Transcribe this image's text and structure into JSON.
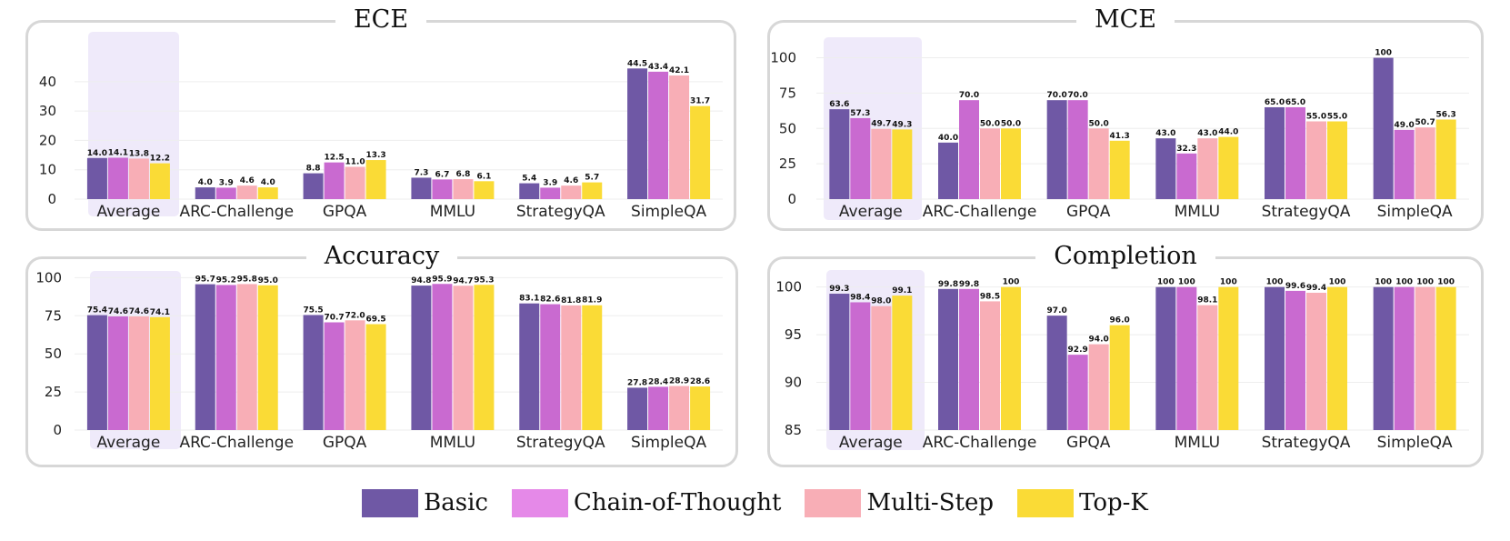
{
  "colors": {
    "highlight": "#efeafa",
    "grid": "#eeeeee"
  },
  "legend": [
    {
      "name": "Basic",
      "color": "#6f58a5"
    },
    {
      "name": "Chain-of-Thought",
      "color": "#e589e8"
    },
    {
      "name": "Multi-Step",
      "color": "#f8aeb6"
    },
    {
      "name": "Top-K",
      "color": "#fadb36"
    }
  ],
  "chart_data": [
    {
      "type": "bar",
      "title": "ECE",
      "categories": [
        "Average",
        "ARC-Challenge",
        "GPQA",
        "MMLU",
        "StrategyQA",
        "SimpleQA"
      ],
      "ylim": [
        0,
        48
      ],
      "yticks": [
        0,
        10,
        20,
        30,
        40
      ],
      "highlight_category": "Average",
      "series": [
        {
          "name": "Basic",
          "color": "#6f58a5",
          "values": [
            14.0,
            4.0,
            8.8,
            7.3,
            5.4,
            44.5
          ]
        },
        {
          "name": "Chain-of-Thought",
          "color": "#c96ad0",
          "values": [
            14.1,
            3.9,
            12.5,
            6.7,
            3.9,
            43.4
          ]
        },
        {
          "name": "Multi-Step",
          "color": "#f8aeb6",
          "values": [
            13.8,
            4.6,
            11.0,
            6.8,
            4.6,
            42.1
          ]
        },
        {
          "name": "Top-K",
          "color": "#fadb36",
          "values": [
            12.2,
            4.0,
            13.3,
            6.1,
            5.7,
            31.7
          ]
        }
      ],
      "data_labels": [
        [
          "14.0",
          "4.0",
          "8.8",
          "7.3",
          "5.4",
          "44.5"
        ],
        [
          "14.1",
          "3.9",
          "12.5",
          "6.7",
          "3.9",
          "43.4"
        ],
        [
          "13.8",
          "4.6",
          "11.0",
          "6.8",
          "4.6",
          "42.1"
        ],
        [
          "12.2",
          "4.0",
          "13.3",
          "6.1",
          "5.7",
          "31.7"
        ]
      ]
    },
    {
      "type": "bar",
      "title": "MCE",
      "categories": [
        "Average",
        "ARC-Challenge",
        "GPQA",
        "MMLU",
        "StrategyQA",
        "SimpleQA"
      ],
      "ylim": [
        0,
        110
      ],
      "yticks": [
        0,
        25,
        50,
        75,
        100
      ],
      "highlight_category": "Average",
      "series": [
        {
          "name": "Basic",
          "color": "#6f58a5",
          "values": [
            63.6,
            40.0,
            70.0,
            43.0,
            65.0,
            100
          ]
        },
        {
          "name": "Chain-of-Thought",
          "color": "#c96ad0",
          "values": [
            57.3,
            70.0,
            70.0,
            32.3,
            65.0,
            49.0
          ]
        },
        {
          "name": "Multi-Step",
          "color": "#f8aeb6",
          "values": [
            49.7,
            50.0,
            50.0,
            43.0,
            55.0,
            50.7
          ]
        },
        {
          "name": "Top-K",
          "color": "#fadb36",
          "values": [
            49.3,
            50.0,
            41.3,
            44.0,
            55.0,
            56.3
          ]
        }
      ],
      "data_labels": [
        [
          "63.6",
          "40.0",
          "70.0",
          "43.0",
          "65.0",
          "100"
        ],
        [
          "57.3",
          "70.0",
          "70.0",
          "32.3",
          "65.0",
          "49.0"
        ],
        [
          "49.7",
          "50.0",
          "50.0",
          "43.0",
          "55.0",
          "50.7"
        ],
        [
          "49.3",
          "50.0",
          "41.3",
          "44.0",
          "55.0",
          "56.3"
        ]
      ]
    },
    {
      "type": "bar",
      "title": "Accuracy",
      "categories": [
        "Average",
        "ARC-Challenge",
        "GPQA",
        "MMLU",
        "StrategyQA",
        "SimpleQA"
      ],
      "ylim": [
        0,
        105
      ],
      "yticks": [
        0,
        25,
        50,
        75,
        100
      ],
      "highlight_category": "Average",
      "series": [
        {
          "name": "Basic",
          "color": "#6f58a5",
          "values": [
            75.4,
            95.7,
            75.5,
            94.8,
            83.1,
            27.8
          ]
        },
        {
          "name": "Chain-of-Thought",
          "color": "#c96ad0",
          "values": [
            74.6,
            95.2,
            70.7,
            95.9,
            82.6,
            28.4
          ]
        },
        {
          "name": "Multi-Step",
          "color": "#f8aeb6",
          "values": [
            74.6,
            95.8,
            72.0,
            94.7,
            81.8,
            28.9
          ]
        },
        {
          "name": "Top-K",
          "color": "#fadb36",
          "values": [
            74.1,
            95.0,
            69.5,
            95.3,
            81.9,
            28.6
          ]
        }
      ],
      "data_labels": [
        [
          "75.4",
          "95.7",
          "75.5",
          "94.8",
          "83.1",
          "27.8"
        ],
        [
          "74.6",
          "95.2",
          "70.7",
          "95.9",
          "82.6",
          "28.4"
        ],
        [
          "74.6",
          "95.8",
          "72.0",
          "94.7",
          "81.8",
          "28.9"
        ],
        [
          "74.1",
          "95.0",
          "69.5",
          "95.3",
          "81.9",
          "28.6"
        ]
      ]
    },
    {
      "type": "bar",
      "title": "Completion",
      "categories": [
        "Average",
        "ARC-Challenge",
        "GPQA",
        "MMLU",
        "StrategyQA",
        "SimpleQA"
      ],
      "ylim": [
        85,
        101.4
      ],
      "yticks": [
        85,
        90,
        95,
        100
      ],
      "highlight_category": "Average",
      "series": [
        {
          "name": "Basic",
          "color": "#6f58a5",
          "values": [
            99.3,
            99.8,
            97.0,
            100,
            100,
            100
          ]
        },
        {
          "name": "Chain-of-Thought",
          "color": "#c96ad0",
          "values": [
            98.4,
            99.8,
            92.9,
            100,
            99.6,
            100
          ]
        },
        {
          "name": "Multi-Step",
          "color": "#f8aeb6",
          "values": [
            98.0,
            98.5,
            94.0,
            98.1,
            99.4,
            100
          ]
        },
        {
          "name": "Top-K",
          "color": "#fadb36",
          "values": [
            99.1,
            100,
            96.0,
            100,
            100,
            100
          ]
        }
      ],
      "data_labels": [
        [
          "99.3",
          "99.8",
          "97.0",
          "100",
          "100",
          "100"
        ],
        [
          "98.4",
          "99.8",
          "92.9",
          "100",
          "99.6",
          "100"
        ],
        [
          "98.0",
          "98.5",
          "94.0",
          "98.1",
          "99.4",
          "100"
        ],
        [
          "99.1",
          "100",
          "96.0",
          "100",
          "100",
          "100"
        ]
      ]
    }
  ]
}
